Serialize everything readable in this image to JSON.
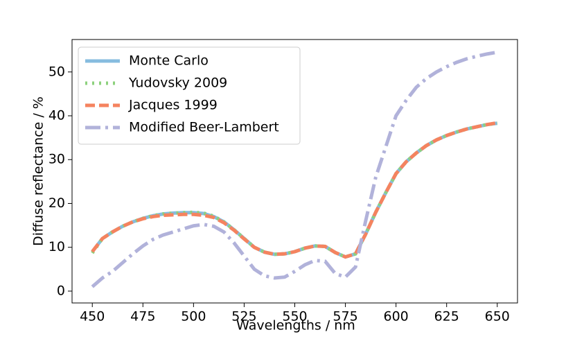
{
  "chart_data": {
    "type": "line",
    "x_label": "Wavelengths / nm",
    "y_label": "Diffuse reflectance / %",
    "x": [
      450,
      455,
      460,
      465,
      470,
      475,
      480,
      485,
      490,
      495,
      500,
      505,
      510,
      515,
      520,
      525,
      530,
      535,
      540,
      545,
      550,
      555,
      560,
      565,
      570,
      575,
      580,
      585,
      590,
      595,
      600,
      605,
      610,
      615,
      620,
      625,
      630,
      635,
      640,
      645,
      650
    ],
    "series": [
      {
        "name": "Monte Carlo",
        "color": "#86bcdf",
        "dash": "solid",
        "values": [
          9,
          12,
          13.5,
          14.8,
          15.8,
          16.6,
          17.2,
          17.6,
          17.8,
          17.9,
          17.9,
          17.7,
          17.0,
          15.8,
          14,
          12,
          10,
          8.9,
          8.4,
          8.5,
          9.0,
          9.8,
          10.3,
          10.2,
          8.8,
          7.8,
          8.5,
          13,
          18,
          22.5,
          26.8,
          29.5,
          31.5,
          33.2,
          34.5,
          35.5,
          36.3,
          37,
          37.5,
          38,
          38.3
        ]
      },
      {
        "name": "Yudovsky 2009",
        "color": "#8dd17d",
        "dash": "dot",
        "values": [
          8.7,
          12,
          13.5,
          14.8,
          15.8,
          16.6,
          17.2,
          17.6,
          17.8,
          17.9,
          18.0,
          17.8,
          17.1,
          15.8,
          14,
          12,
          10,
          8.9,
          8.4,
          8.5,
          9.0,
          9.8,
          10.3,
          10.2,
          8.8,
          7.8,
          8.5,
          13,
          18,
          22.5,
          26.8,
          29.5,
          31.5,
          33.2,
          34.5,
          35.5,
          36.3,
          37,
          37.5,
          38,
          38.3
        ]
      },
      {
        "name": "Jacques 1999",
        "color": "#f5835f",
        "dash": "dash",
        "values": [
          9,
          12,
          13.5,
          14.8,
          15.8,
          16.5,
          17.0,
          17.3,
          17.4,
          17.5,
          17.5,
          17.3,
          16.8,
          15.6,
          13.9,
          11.9,
          10,
          8.9,
          8.4,
          8.5,
          9.0,
          9.8,
          10.3,
          10.2,
          8.8,
          7.8,
          8.5,
          13,
          18,
          22.5,
          26.8,
          29.5,
          31.5,
          33.2,
          34.5,
          35.5,
          36.3,
          37,
          37.5,
          38,
          38.4
        ]
      },
      {
        "name": "Modified Beer-Lambert",
        "color": "#b1b2da",
        "dash": "dashdot",
        "values": [
          1,
          3,
          4.5,
          6.5,
          8.5,
          10.3,
          11.8,
          12.8,
          13.5,
          14.2,
          14.9,
          15.2,
          14.8,
          13.5,
          11,
          8,
          5,
          3.5,
          3,
          3.2,
          4.5,
          6,
          7,
          6.8,
          4,
          3.2,
          5.5,
          16,
          26,
          33,
          40,
          43.5,
          46.5,
          48.5,
          50,
          51.2,
          52.2,
          53,
          53.6,
          54.1,
          54.5
        ]
      }
    ],
    "xlim": [
      440,
      660
    ],
    "ylim": [
      -2.7,
      57.4
    ],
    "xticks": [
      450,
      475,
      500,
      525,
      550,
      575,
      600,
      625,
      650
    ],
    "yticks": [
      0,
      10,
      20,
      30,
      40,
      50
    ],
    "legend": "upper-left"
  }
}
